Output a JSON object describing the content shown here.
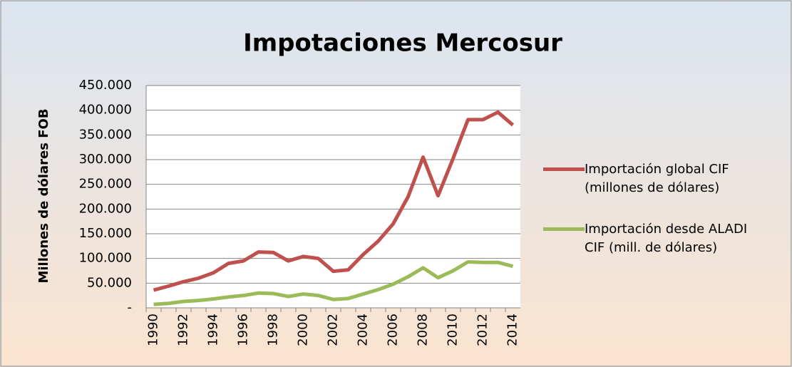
{
  "chart_data": {
    "type": "line",
    "title": "Impotaciones Mercosur",
    "y_label": "Millones de dólares FOB",
    "categories": [
      "1990",
      null,
      "1992",
      null,
      "1994",
      null,
      "1996",
      null,
      "1998",
      null,
      "2000",
      null,
      "2002",
      null,
      "2004",
      null,
      "2006",
      null,
      "2008",
      null,
      "2010",
      null,
      "2012",
      null,
      "2014"
    ],
    "series": [
      {
        "name": "Importación global CIF (millones de dólares)",
        "color": "#c0504d",
        "values": [
          36000,
          44000,
          53000,
          60000,
          71000,
          90000,
          95000,
          113000,
          112000,
          95000,
          104000,
          100000,
          74000,
          77000,
          108000,
          135000,
          170000,
          225000,
          305000,
          227000,
          302000,
          381000,
          381000,
          396000,
          370000
        ]
      },
      {
        "name": "Importación desde ALADI CIF (mill. de dólares)",
        "color": "#9bbb59",
        "values": [
          7000,
          9000,
          13000,
          15000,
          18000,
          22000,
          25000,
          30000,
          29000,
          23000,
          28000,
          25000,
          17000,
          19000,
          28000,
          37000,
          48000,
          63000,
          81000,
          61000,
          75000,
          93000,
          92000,
          92000,
          84000
        ]
      }
    ],
    "ylim": [
      0,
      450000
    ],
    "yticks": [
      {
        "value": 0,
        "label": "-"
      },
      {
        "value": 50000,
        "label": "50.000"
      },
      {
        "value": 100000,
        "label": "100.000"
      },
      {
        "value": 150000,
        "label": "150.000"
      },
      {
        "value": 200000,
        "label": "200.000"
      },
      {
        "value": 250000,
        "label": "250.000"
      },
      {
        "value": 300000,
        "label": "300.000"
      },
      {
        "value": 350000,
        "label": "350.000"
      },
      {
        "value": 400000,
        "label": "400.000"
      },
      {
        "value": 450000,
        "label": "450.000"
      }
    ],
    "grid": true,
    "legend": "right"
  }
}
